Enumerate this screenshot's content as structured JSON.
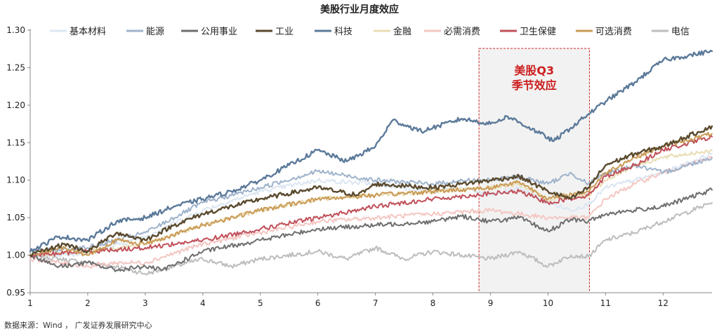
{
  "chart_data": {
    "type": "line",
    "title": "美股行业月度效应",
    "xlabel": "",
    "ylabel": "",
    "xlim": [
      1,
      12.85
    ],
    "ylim": [
      0.95,
      1.3
    ],
    "x_ticks": [
      1,
      2,
      3,
      4,
      5,
      6,
      7,
      8,
      9,
      10,
      11,
      12
    ],
    "y_ticks": [
      "0.95",
      "1.00",
      "1.05",
      "1.10",
      "1.15",
      "1.20",
      "1.25",
      "1.30"
    ],
    "grid": false,
    "legend_position": "top",
    "highlight": {
      "x_start": 8.8,
      "x_end": 10.72,
      "label_line1": "美股Q3",
      "label_line2": "季节效应",
      "fill": "#f2f2f2",
      "border_color": "#cc2222",
      "label_color": "#cc1f1f"
    },
    "source_note": "数据来源：Wind ， 广发证券发展研究中心",
    "series": [
      {
        "name": "基本材料",
        "color": "#dce6f2",
        "points": [
          [
            1,
            1.0
          ],
          [
            2,
            1.002
          ],
          [
            3,
            1.025
          ],
          [
            4,
            1.06
          ],
          [
            5,
            1.085
          ],
          [
            6,
            1.1
          ],
          [
            7,
            1.095
          ],
          [
            8,
            1.085
          ],
          [
            8.5,
            1.09
          ],
          [
            9,
            1.08
          ],
          [
            9.5,
            1.09
          ],
          [
            10,
            1.07
          ],
          [
            10.4,
            1.06
          ],
          [
            10.7,
            1.068
          ],
          [
            11,
            1.09
          ],
          [
            11.5,
            1.1
          ],
          [
            12,
            1.11
          ],
          [
            12.85,
            1.135
          ]
        ]
      },
      {
        "name": "能源",
        "color": "#9fb3cb",
        "points": [
          [
            1,
            1.005
          ],
          [
            2,
            1.01
          ],
          [
            3,
            1.03
          ],
          [
            4,
            1.07
          ],
          [
            5,
            1.09
          ],
          [
            6,
            1.112
          ],
          [
            7,
            1.1
          ],
          [
            8,
            1.095
          ],
          [
            8.6,
            1.1
          ],
          [
            9,
            1.1
          ],
          [
            9.5,
            1.105
          ],
          [
            10,
            1.095
          ],
          [
            10.4,
            1.11
          ],
          [
            10.7,
            1.095
          ],
          [
            11,
            1.108
          ],
          [
            11.5,
            1.12
          ],
          [
            12,
            1.11
          ],
          [
            12.85,
            1.13
          ]
        ]
      },
      {
        "name": "公用事业",
        "color": "#6e6e6e",
        "points": [
          [
            1,
            1.0
          ],
          [
            1.5,
            0.985
          ],
          [
            2,
            0.99
          ],
          [
            2.5,
            0.98
          ],
          [
            3,
            0.985
          ],
          [
            3.3,
            0.98
          ],
          [
            4,
            1.005
          ],
          [
            5,
            1.02
          ],
          [
            6,
            1.035
          ],
          [
            7,
            1.04
          ],
          [
            8,
            1.045
          ],
          [
            8.5,
            1.052
          ],
          [
            9,
            1.045
          ],
          [
            9.5,
            1.05
          ],
          [
            10,
            1.032
          ],
          [
            10.4,
            1.048
          ],
          [
            10.7,
            1.045
          ],
          [
            11,
            1.055
          ],
          [
            11.5,
            1.06
          ],
          [
            12,
            1.065
          ],
          [
            12.85,
            1.087
          ]
        ]
      },
      {
        "name": "工业",
        "color": "#5a4a2e",
        "points": [
          [
            1,
            1.0
          ],
          [
            1.6,
            1.015
          ],
          [
            2,
            1.005
          ],
          [
            2.5,
            1.03
          ],
          [
            3,
            1.02
          ],
          [
            3.5,
            1.04
          ],
          [
            4,
            1.055
          ],
          [
            5,
            1.075
          ],
          [
            6,
            1.09
          ],
          [
            6.7,
            1.08
          ],
          [
            7,
            1.095
          ],
          [
            8,
            1.09
          ],
          [
            8.5,
            1.095
          ],
          [
            9,
            1.1
          ],
          [
            9.5,
            1.105
          ],
          [
            10,
            1.085
          ],
          [
            10.4,
            1.075
          ],
          [
            10.7,
            1.09
          ],
          [
            11,
            1.12
          ],
          [
            11.5,
            1.135
          ],
          [
            12,
            1.145
          ],
          [
            12.85,
            1.172
          ]
        ]
      },
      {
        "name": "科技",
        "color": "#5c7a9a",
        "points": [
          [
            1,
            1.005
          ],
          [
            1.5,
            1.025
          ],
          [
            2,
            1.02
          ],
          [
            2.5,
            1.045
          ],
          [
            3,
            1.05
          ],
          [
            3.5,
            1.065
          ],
          [
            4,
            1.075
          ],
          [
            4.5,
            1.085
          ],
          [
            5,
            1.1
          ],
          [
            5.5,
            1.12
          ],
          [
            6,
            1.14
          ],
          [
            6.5,
            1.125
          ],
          [
            7,
            1.145
          ],
          [
            7.3,
            1.18
          ],
          [
            7.8,
            1.165
          ],
          [
            8,
            1.17
          ],
          [
            8.5,
            1.182
          ],
          [
            9,
            1.175
          ],
          [
            9.3,
            1.185
          ],
          [
            9.8,
            1.165
          ],
          [
            10.1,
            1.152
          ],
          [
            10.4,
            1.17
          ],
          [
            10.7,
            1.188
          ],
          [
            11,
            1.205
          ],
          [
            11.5,
            1.23
          ],
          [
            12,
            1.26
          ],
          [
            12.85,
            1.272
          ]
        ]
      },
      {
        "name": "金融",
        "color": "#e9ddb4",
        "points": [
          [
            1,
            1.0
          ],
          [
            2,
            1.005
          ],
          [
            3,
            1.015
          ],
          [
            4,
            1.04
          ],
          [
            5,
            1.06
          ],
          [
            6,
            1.075
          ],
          [
            7,
            1.08
          ],
          [
            8,
            1.085
          ],
          [
            9,
            1.09
          ],
          [
            9.5,
            1.095
          ],
          [
            10,
            1.075
          ],
          [
            10.7,
            1.08
          ],
          [
            11,
            1.1
          ],
          [
            11.5,
            1.12
          ],
          [
            12,
            1.13
          ],
          [
            12.85,
            1.14
          ]
        ]
      },
      {
        "name": "必需消费",
        "color": "#f4c7c3",
        "points": [
          [
            1,
            0.995
          ],
          [
            2,
            0.985
          ],
          [
            2.5,
            0.99
          ],
          [
            3,
            0.99
          ],
          [
            4,
            1.015
          ],
          [
            5,
            1.03
          ],
          [
            6,
            1.045
          ],
          [
            7,
            1.05
          ],
          [
            8,
            1.055
          ],
          [
            9,
            1.06
          ],
          [
            9.5,
            1.055
          ],
          [
            10,
            1.05
          ],
          [
            10.7,
            1.05
          ],
          [
            11,
            1.075
          ],
          [
            11.5,
            1.095
          ],
          [
            12,
            1.11
          ],
          [
            12.85,
            1.13
          ]
        ]
      },
      {
        "name": "卫生保健",
        "color": "#c0505a",
        "points": [
          [
            1,
            1.0
          ],
          [
            2,
            1.005
          ],
          [
            3,
            1.01
          ],
          [
            4,
            1.02
          ],
          [
            5,
            1.035
          ],
          [
            6,
            1.05
          ],
          [
            7,
            1.065
          ],
          [
            8,
            1.075
          ],
          [
            9,
            1.082
          ],
          [
            9.5,
            1.085
          ],
          [
            10,
            1.07
          ],
          [
            10.7,
            1.08
          ],
          [
            11,
            1.105
          ],
          [
            11.5,
            1.12
          ],
          [
            12,
            1.14
          ],
          [
            12.85,
            1.158
          ]
        ]
      },
      {
        "name": "可选消费",
        "color": "#c99a55",
        "points": [
          [
            1,
            1.0
          ],
          [
            1.6,
            1.01
          ],
          [
            2,
            1.0
          ],
          [
            2.5,
            1.02
          ],
          [
            3,
            1.015
          ],
          [
            4,
            1.04
          ],
          [
            5,
            1.06
          ],
          [
            6,
            1.075
          ],
          [
            7,
            1.08
          ],
          [
            8,
            1.085
          ],
          [
            9,
            1.09
          ],
          [
            9.5,
            1.098
          ],
          [
            10,
            1.075
          ],
          [
            10.7,
            1.085
          ],
          [
            11,
            1.11
          ],
          [
            11.5,
            1.13
          ],
          [
            12,
            1.145
          ],
          [
            12.85,
            1.162
          ]
        ]
      },
      {
        "name": "电信",
        "color": "#bdbdbd",
        "points": [
          [
            1,
            1.0
          ],
          [
            2,
            0.99
          ],
          [
            2.5,
            0.985
          ],
          [
            3,
            0.975
          ],
          [
            3.5,
            0.985
          ],
          [
            4,
            0.995
          ],
          [
            4.5,
            0.985
          ],
          [
            5,
            0.995
          ],
          [
            6,
            1.005
          ],
          [
            6.5,
            0.995
          ],
          [
            7,
            1.01
          ],
          [
            7.5,
            0.995
          ],
          [
            8,
            1.005
          ],
          [
            8.5,
            1.0
          ],
          [
            9,
            0.995
          ],
          [
            9.5,
            1.005
          ],
          [
            10,
            0.985
          ],
          [
            10.4,
            1.0
          ],
          [
            10.7,
            0.998
          ],
          [
            11,
            1.02
          ],
          [
            11.5,
            1.03
          ],
          [
            12,
            1.045
          ],
          [
            12.85,
            1.07
          ]
        ]
      }
    ]
  }
}
